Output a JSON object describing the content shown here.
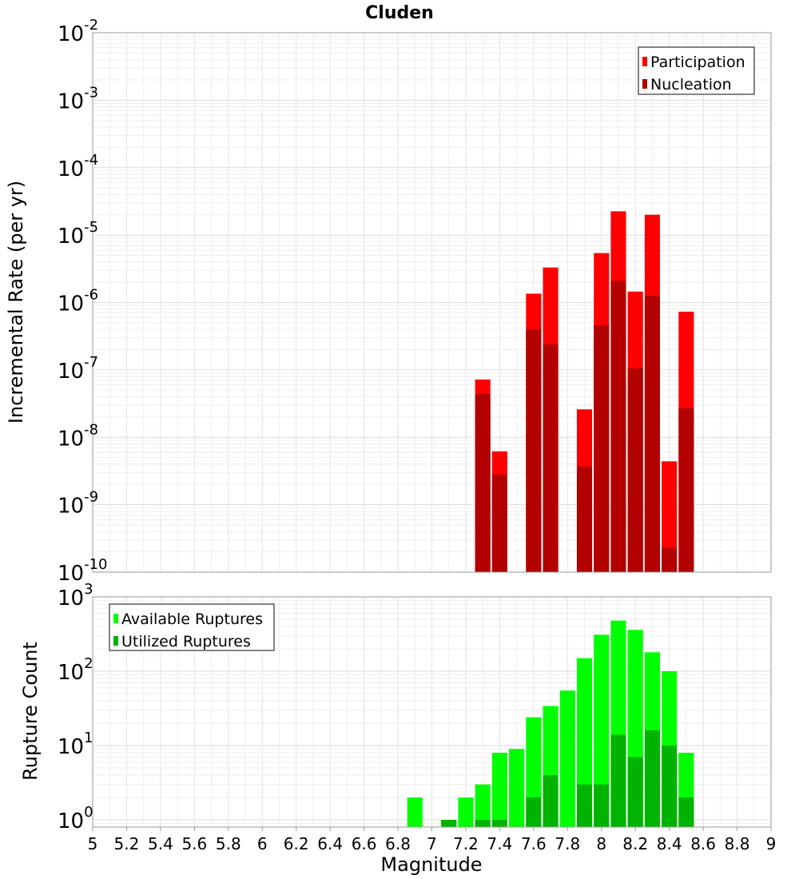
{
  "chart_data": [
    {
      "type": "bar",
      "title": "Cluden",
      "xlabel": "",
      "ylabel": "Incremental Rate (per yr)",
      "x": [
        7.3,
        7.4,
        7.6,
        7.7,
        7.9,
        8.0,
        8.1,
        8.2,
        8.3,
        8.4,
        8.5
      ],
      "xlim": [
        5,
        9
      ],
      "ylim": [
        1e-10,
        0.01
      ],
      "yscale": "log",
      "ytick_exponents": [
        -2,
        -3,
        -4,
        -5,
        -6,
        -7,
        -8,
        -9,
        -10
      ],
      "grid": true,
      "legend_position": "top-right",
      "series": [
        {
          "name": "Participation",
          "color": "#ff0000",
          "values": [
            7.2e-08,
            6.2e-09,
            1.35e-06,
            3.3e-06,
            2.6e-08,
            5.4e-06,
            2.25e-05,
            1.45e-06,
            2e-05,
            4.4e-09,
            7.3e-07
          ]
        },
        {
          "name": "Nucleation",
          "color": "#b30000",
          "values": [
            4.4e-08,
            2.8e-09,
            4e-07,
            2.4e-07,
            3.7e-09,
            4.6e-07,
            2.1e-06,
            1.05e-07,
            1.25e-06,
            2.3e-10,
            2.7e-08
          ]
        }
      ]
    },
    {
      "type": "bar",
      "title": "",
      "xlabel": "Magnitude",
      "ylabel": "Rupture Count",
      "x": [
        6.9,
        7.1,
        7.2,
        7.3,
        7.4,
        7.5,
        7.6,
        7.7,
        7.8,
        7.9,
        8.0,
        8.1,
        8.2,
        8.3,
        8.4,
        8.5
      ],
      "xlim": [
        5,
        9
      ],
      "xticks": [
        "5",
        "5.2",
        "5.4",
        "5.6",
        "5.8",
        "6",
        "6.2",
        "6.4",
        "6.6",
        "6.8",
        "7",
        "7.2",
        "7.4",
        "7.6",
        "7.8",
        "8",
        "8.2",
        "8.4",
        "8.6",
        "8.8",
        "9"
      ],
      "ylim": [
        0.8,
        1000
      ],
      "yscale": "log",
      "ytick_exponents": [
        3,
        2,
        1,
        0
      ],
      "grid": true,
      "legend_position": "top-left",
      "series": [
        {
          "name": "Available Ruptures",
          "color": "#00ff00",
          "values": [
            2,
            1,
            2,
            3,
            8,
            9,
            24,
            34,
            55,
            150,
            310,
            480,
            360,
            180,
            100,
            8
          ]
        },
        {
          "name": "Utilized Ruptures",
          "color": "#00b300",
          "values": [
            0,
            1,
            0,
            1,
            1,
            0,
            2,
            4,
            0,
            3,
            3,
            14,
            7,
            16,
            10,
            2
          ]
        }
      ]
    }
  ]
}
